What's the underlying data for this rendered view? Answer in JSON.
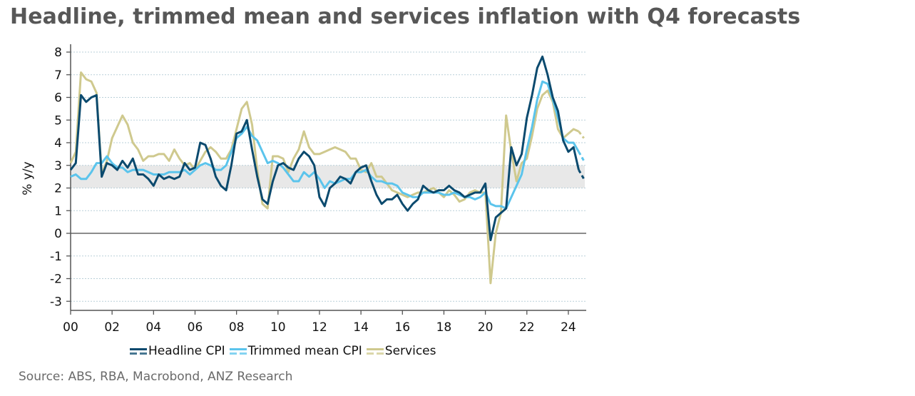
{
  "title": "Headline, trimmed mean and services inflation with Q4 forecasts",
  "source": "Source: ABS, RBA, Macrobond, ANZ Research",
  "colors": {
    "headline": "#0b4a6e",
    "trimmed": "#5bc4ec",
    "services": "#cfc98e",
    "band": "#e8e8e8",
    "grid": "#b9cfd8",
    "axis": "#555555",
    "zero": "#666666"
  },
  "chart_data": {
    "type": "line",
    "title": "Headline, trimmed mean and services inflation with Q4 forecasts",
    "xlabel": "",
    "ylabel": "% y/y",
    "ylim": [
      -3.4,
      8.4
    ],
    "xlim": [
      2000,
      2025
    ],
    "yticks": [
      8,
      7,
      6,
      5,
      4,
      3,
      2,
      1,
      0,
      -1,
      -2,
      -3
    ],
    "ytick_labels": [
      "8",
      "7",
      "6",
      "5",
      "4",
      "3",
      "2",
      "1",
      "0",
      "-1",
      "-2",
      "-3"
    ],
    "xticks": [
      2000,
      2002,
      2004,
      2006,
      2008,
      2010,
      2012,
      2014,
      2016,
      2018,
      2020,
      2022,
      2024
    ],
    "xtick_labels": [
      "00",
      "02",
      "04",
      "06",
      "08",
      "10",
      "12",
      "14",
      "16",
      "18",
      "20",
      "22",
      "24"
    ],
    "grid": true,
    "target_band": [
      2,
      3
    ],
    "legend_position": "bottom",
    "frequency": "quarterly",
    "x_start": 2000.0,
    "forecast_points": 1,
    "series": [
      {
        "name": "Headline CPI",
        "key": "headline",
        "values": [
          2.8,
          3.1,
          6.1,
          5.8,
          6.0,
          6.1,
          2.5,
          3.1,
          3.0,
          2.8,
          3.2,
          2.9,
          3.3,
          2.6,
          2.6,
          2.4,
          2.1,
          2.6,
          2.4,
          2.5,
          2.4,
          2.5,
          3.1,
          2.8,
          2.9,
          4.0,
          3.9,
          3.3,
          2.5,
          2.1,
          1.9,
          3.0,
          4.4,
          4.5,
          5.0,
          3.7,
          2.5,
          1.5,
          1.3,
          2.3,
          3.0,
          3.1,
          2.9,
          2.8,
          3.3,
          3.6,
          3.4,
          3.0,
          1.6,
          1.2,
          2.0,
          2.2,
          2.5,
          2.4,
          2.2,
          2.7,
          2.9,
          3.0,
          2.3,
          1.7,
          1.3,
          1.5,
          1.5,
          1.7,
          1.3,
          1.0,
          1.3,
          1.5,
          2.1,
          1.9,
          1.8,
          1.9,
          1.9,
          2.1,
          1.9,
          1.8,
          1.6,
          1.7,
          1.8,
          1.8,
          2.2,
          -0.3,
          0.7,
          0.9,
          1.1,
          3.8,
          3.0,
          3.5,
          5.1,
          6.1,
          7.3,
          7.8,
          7.0,
          6.0,
          5.4,
          4.1,
          3.6,
          3.8,
          2.8,
          2.4
        ],
        "note": "last value is Q4 2024 forecast (dashed)"
      },
      {
        "name": "Trimmed mean CPI",
        "key": "trimmed",
        "values": [
          2.5,
          2.6,
          2.4,
          2.4,
          2.7,
          3.1,
          3.1,
          3.4,
          3.1,
          2.9,
          2.9,
          2.7,
          2.8,
          2.8,
          2.8,
          2.7,
          2.6,
          2.6,
          2.6,
          2.7,
          2.7,
          2.7,
          2.8,
          2.6,
          2.8,
          3.0,
          3.1,
          3.0,
          2.8,
          2.8,
          3.0,
          3.6,
          4.2,
          4.4,
          4.7,
          4.3,
          4.1,
          3.6,
          3.1,
          3.2,
          3.1,
          2.9,
          2.6,
          2.3,
          2.3,
          2.7,
          2.5,
          2.7,
          2.4,
          2.0,
          2.3,
          2.2,
          2.3,
          2.4,
          2.4,
          2.7,
          2.7,
          2.8,
          2.5,
          2.3,
          2.3,
          2.2,
          2.2,
          2.1,
          1.8,
          1.7,
          1.6,
          1.6,
          1.8,
          1.8,
          1.8,
          1.8,
          1.7,
          1.7,
          1.8,
          1.7,
          1.6,
          1.6,
          1.5,
          1.6,
          1.8,
          1.3,
          1.2,
          1.2,
          1.1,
          1.6,
          2.1,
          2.6,
          3.7,
          4.7,
          5.9,
          6.7,
          6.6,
          5.9,
          5.1,
          4.2,
          4.0,
          4.0,
          3.6,
          3.2
        ],
        "note": "last value is Q4 2024 forecast (dashed)"
      },
      {
        "name": "Services",
        "key": "services",
        "values": [
          3.1,
          3.6,
          7.1,
          6.8,
          6.7,
          6.2,
          2.6,
          3.2,
          4.2,
          4.7,
          5.2,
          4.8,
          4.0,
          3.7,
          3.2,
          3.4,
          3.4,
          3.5,
          3.5,
          3.2,
          3.7,
          3.3,
          3.0,
          3.1,
          2.8,
          3.2,
          3.6,
          3.8,
          3.6,
          3.3,
          3.3,
          3.7,
          4.6,
          5.5,
          5.8,
          4.8,
          2.8,
          1.3,
          1.1,
          3.4,
          3.4,
          3.3,
          2.7,
          3.3,
          3.7,
          4.5,
          3.8,
          3.5,
          3.5,
          3.6,
          3.7,
          3.8,
          3.7,
          3.6,
          3.3,
          3.3,
          2.8,
          2.7,
          3.1,
          2.5,
          2.5,
          2.2,
          1.9,
          1.8,
          1.7,
          1.6,
          1.7,
          1.8,
          1.8,
          1.9,
          2.0,
          1.8,
          1.6,
          1.9,
          1.7,
          1.4,
          1.5,
          1.8,
          1.9,
          1.8,
          1.8,
          -2.2,
          0.0,
          0.9,
          5.2,
          3.6,
          2.3,
          3.1,
          3.3,
          4.3,
          5.5,
          6.1,
          6.3,
          5.8,
          4.6,
          4.2,
          4.4,
          4.6,
          4.5,
          4.2
        ],
        "note": "last value is Q4 2024 forecast (dashed)"
      }
    ]
  },
  "legend": {
    "items": [
      {
        "label": "Headline CPI",
        "key": "headline"
      },
      {
        "label": "Trimmed mean CPI",
        "key": "trimmed"
      },
      {
        "label": "Services",
        "key": "services"
      }
    ]
  }
}
